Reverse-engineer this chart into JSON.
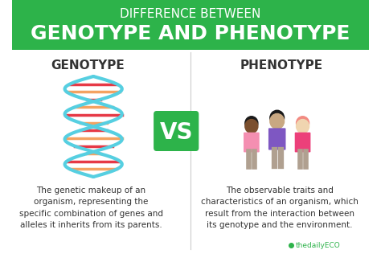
{
  "bg_color": "#ffffff",
  "header_bg": "#2db34a",
  "header_line1": "DIFFERENCE BETWEEN",
  "header_line1_size": 11,
  "header_line2": "GENOTYPE AND PHENOTYPE",
  "header_line2_size": 18,
  "header_text_color": "#ffffff",
  "left_label": "GENOTYPE",
  "right_label": "PHENOTYPE",
  "label_color": "#333333",
  "label_size": 11,
  "vs_bg": "#2db34a",
  "vs_text": "VS",
  "vs_color": "#ffffff",
  "vs_size": 20,
  "left_desc": "The genetic makeup of an\norganism, representing the\nspecific combination of genes and\nalleles it inherits from its parents.",
  "right_desc": "The observable traits and\ncharacteristics of an organism, which\nresult from the interaction between\nits genotype and the environment.",
  "desc_color": "#333333",
  "desc_size": 7.5,
  "watermark": "thedailyECO",
  "watermark_color": "#2db34a",
  "divider_color": "#cccccc",
  "dna_strand_color": "#56cfe1",
  "dna_rung_colors": [
    "#f4a261",
    "#e63946"
  ],
  "person1_shirt": "#f48fb1",
  "person1_skin": "#7b4f2e",
  "person1_hair": "#1a1a1a",
  "person2_shirt": "#7e57c2",
  "person2_skin": "#c9a882",
  "person2_hair": "#1a1a1a",
  "person3_shirt": "#ec407a",
  "person3_skin": "#f0d5b0",
  "person3_hair": "#f28b82"
}
